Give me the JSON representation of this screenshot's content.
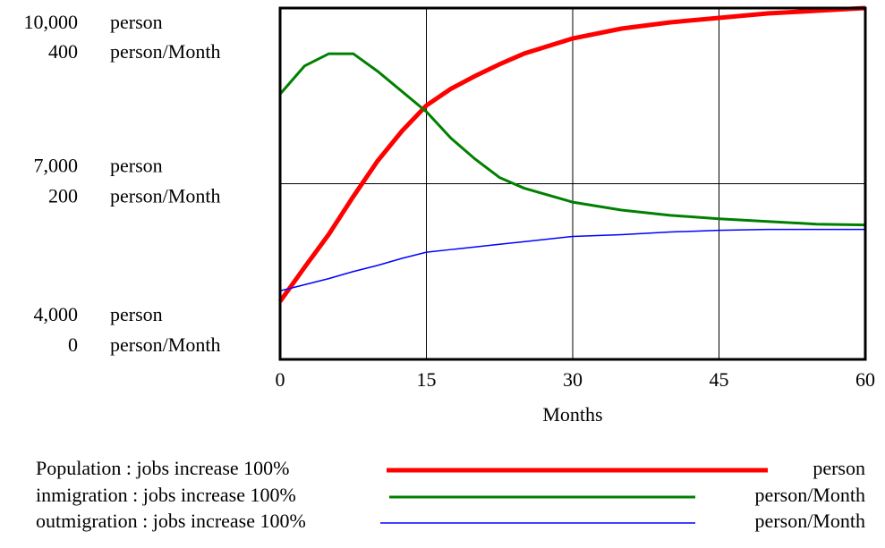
{
  "chart_data": {
    "type": "line",
    "x_label": "Months",
    "xlim": [
      0,
      60
    ],
    "xticks": [
      0,
      15,
      30,
      45,
      60
    ],
    "y_unit": "person",
    "ylim": [
      4000,
      10000
    ],
    "yticks": [
      {
        "value": 4000,
        "label": "4,000"
      },
      {
        "value": 7000,
        "label": "7,000"
      },
      {
        "value": 10000,
        "label": "10,000"
      }
    ],
    "y2_unit": "person/Month",
    "y2lim": [
      0,
      400
    ],
    "y2ticks": [
      0,
      200,
      400
    ],
    "grid": true,
    "x": [
      0,
      2.5,
      5,
      7.5,
      10,
      12.5,
      15,
      17.5,
      20,
      22.5,
      25,
      30,
      35,
      40,
      45,
      50,
      55,
      60
    ],
    "series": [
      {
        "name": "Population : jobs increase 100%",
        "color": "#ff0000",
        "values": [
          4990,
          5570,
          6137,
          6780,
          7389,
          7900,
          8336,
          8620,
          8840,
          9040,
          9221,
          9481,
          9649,
          9756,
          9832,
          9908,
          9954,
          10000
        ]
      },
      {
        "name": "inmigration : jobs increase 100%",
        "color": "#008000",
        "axis": "y2",
        "values": [
          302,
          334,
          348,
          348,
          328,
          305,
          282,
          252,
          228,
          207,
          195,
          179,
          170,
          164,
          160,
          157,
          154,
          153
        ]
      },
      {
        "name": "outmigration : jobs increase 100%",
        "color": "#0000ff",
        "axis": "y2",
        "values": [
          78,
          85,
          92,
          100,
          107,
          115,
          122,
          125,
          128,
          131,
          134,
          140,
          142,
          145,
          147,
          148,
          148,
          148
        ]
      }
    ]
  }
}
